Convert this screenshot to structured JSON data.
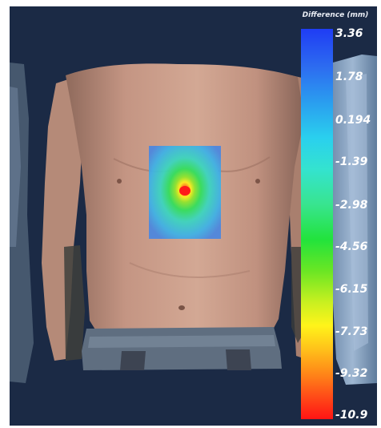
{
  "legend": {
    "title": "Difference (mm)",
    "ticks": [
      "3.36",
      "1.78",
      "0.194",
      "-1.39",
      "-2.98",
      "-4.56",
      "-6.15",
      "-7.73",
      "-9.32",
      "-10.9"
    ]
  },
  "colors": {
    "background": "#1b2a45",
    "skin": "#c99a86",
    "jeans": "#5f6e80",
    "colormap_top": "#1f3cf4",
    "colormap_bottom": "#ff1414"
  }
}
